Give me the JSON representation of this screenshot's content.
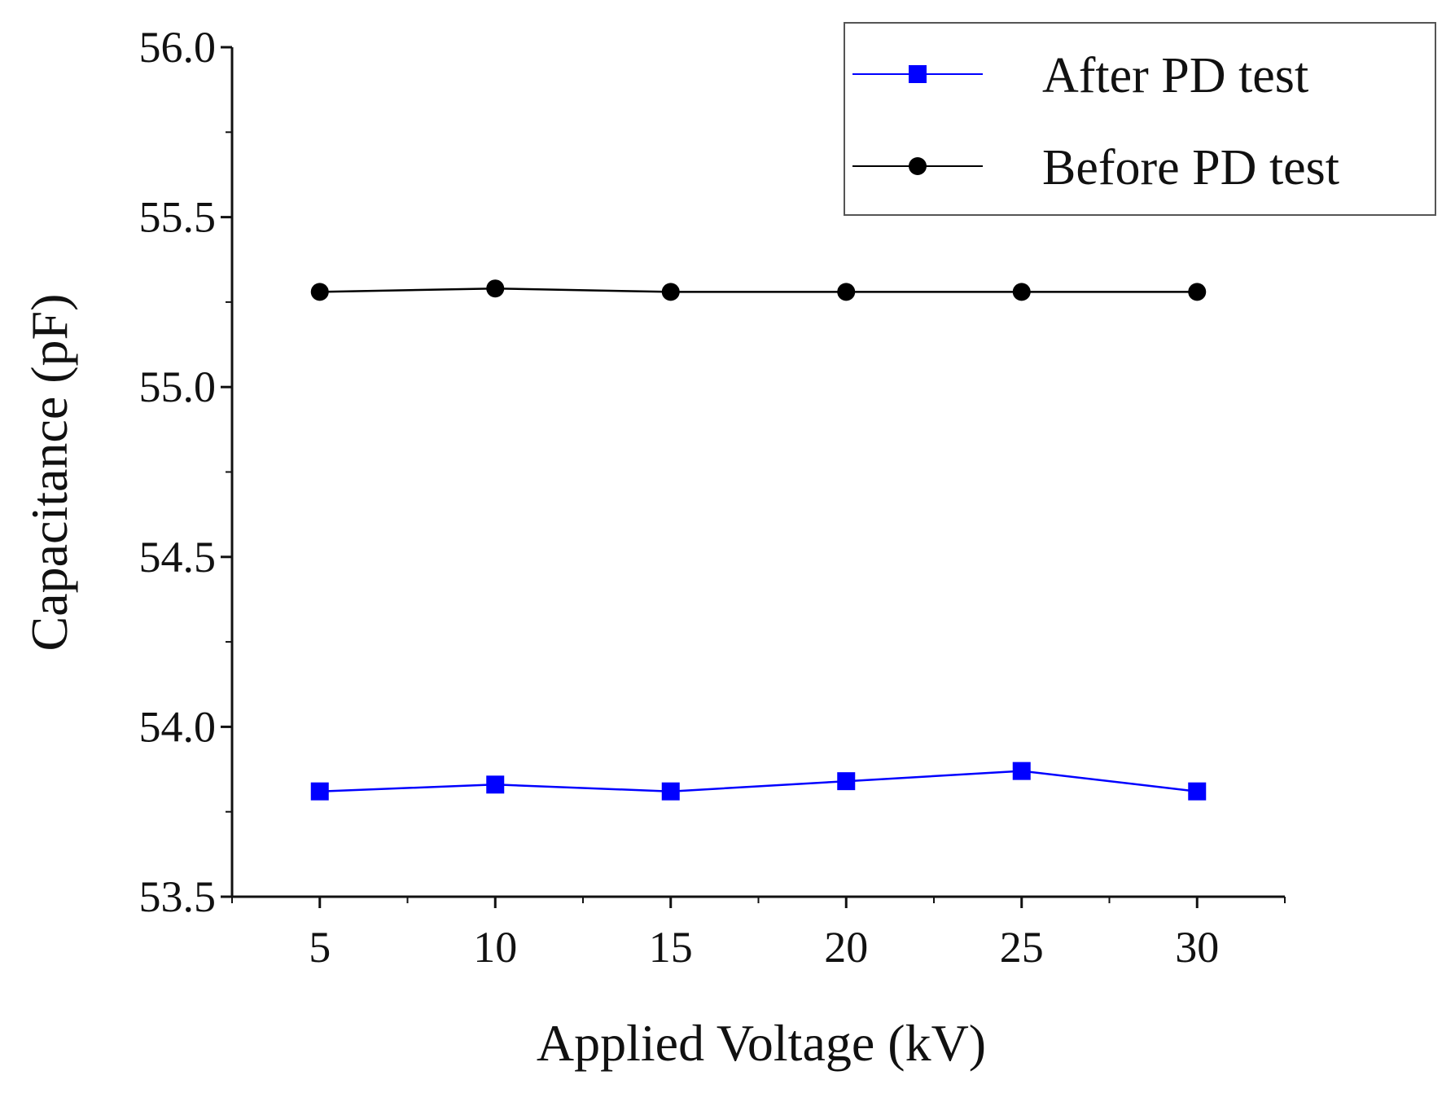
{
  "chart_data": {
    "type": "line",
    "x": [
      5,
      10,
      15,
      20,
      25,
      30
    ],
    "series": [
      {
        "name": "After PD test",
        "color": "#0000ff",
        "marker": "square",
        "values": [
          53.81,
          53.83,
          53.81,
          53.84,
          53.87,
          53.81
        ]
      },
      {
        "name": "Before PD test",
        "color": "#000000",
        "marker": "circle",
        "values": [
          55.28,
          55.29,
          55.28,
          55.28,
          55.28,
          55.28
        ]
      }
    ],
    "xlabel": "Applied Voltage (kV)",
    "ylabel": "Capacitance (pF)",
    "xlim": [
      2.5,
      32.5
    ],
    "ylim": [
      53.5,
      56.0
    ],
    "x_major_ticks": [
      5,
      10,
      15,
      20,
      25,
      30
    ],
    "x_tick_labels": [
      "5",
      "10",
      "15",
      "20",
      "25",
      "30"
    ],
    "y_major_ticks": [
      53.5,
      54.0,
      54.5,
      55.0,
      55.5,
      56.0
    ],
    "y_tick_labels": [
      "53.5",
      "54.0",
      "54.5",
      "55.0",
      "55.5",
      "56.0"
    ],
    "legend_position": "top-right",
    "grid": false
  }
}
